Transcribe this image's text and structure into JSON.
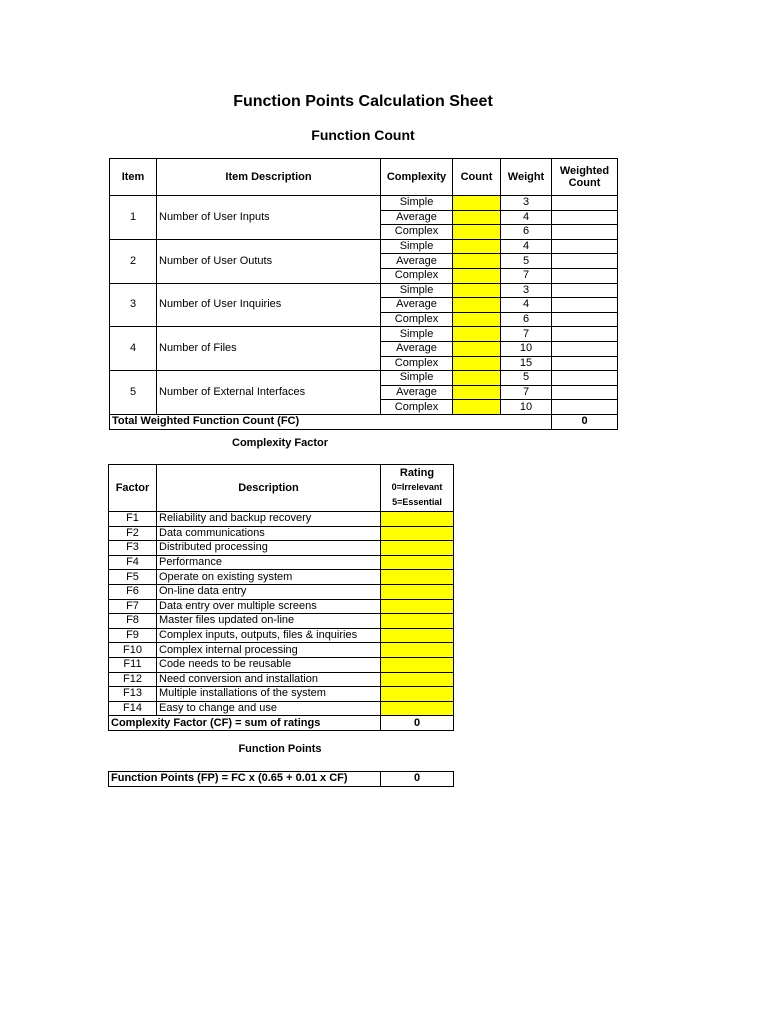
{
  "title": "Function Points Calculation Sheet",
  "function_count": {
    "heading": "Function Count",
    "headers": [
      "Item",
      "Item Description",
      "Complexity",
      "Count",
      "Weight",
      "Weighted Count"
    ],
    "items": [
      {
        "item": "1",
        "description": "Number of User Inputs",
        "levels": [
          {
            "complexity": "Simple",
            "weight": "3"
          },
          {
            "complexity": "Average",
            "weight": "4"
          },
          {
            "complexity": "Complex",
            "weight": "6"
          }
        ]
      },
      {
        "item": "2",
        "description": "Number of User Oututs",
        "levels": [
          {
            "complexity": "Simple",
            "weight": "4"
          },
          {
            "complexity": "Average",
            "weight": "5"
          },
          {
            "complexity": "Complex",
            "weight": "7"
          }
        ]
      },
      {
        "item": "3",
        "description": "Number of User Inquiries",
        "levels": [
          {
            "complexity": "Simple",
            "weight": "3"
          },
          {
            "complexity": "Average",
            "weight": "4"
          },
          {
            "complexity": "Complex",
            "weight": "6"
          }
        ]
      },
      {
        "item": "4",
        "description": "Number of Files",
        "levels": [
          {
            "complexity": "Simple",
            "weight": "7"
          },
          {
            "complexity": "Average",
            "weight": "10"
          },
          {
            "complexity": "Complex",
            "weight": "15"
          }
        ]
      },
      {
        "item": "5",
        "description": "Number of External Interfaces",
        "levels": [
          {
            "complexity": "Simple",
            "weight": "5"
          },
          {
            "complexity": "Average",
            "weight": "7"
          },
          {
            "complexity": "Complex",
            "weight": "10"
          }
        ]
      }
    ],
    "total_label": "Total Weighted Function Count (FC)",
    "total_value": "0"
  },
  "complexity_factor": {
    "heading": "Complexity Factor",
    "headers": {
      "factor": "Factor",
      "description": "Description",
      "rating": "Rating",
      "rating_sub1": "0=Irrelevant",
      "rating_sub2": "5=Essential"
    },
    "factors": [
      {
        "id": "F1",
        "description": "Reliability and backup recovery"
      },
      {
        "id": "F2",
        "description": "Data communications"
      },
      {
        "id": "F3",
        "description": "Distributed processing"
      },
      {
        "id": "F4",
        "description": "Performance"
      },
      {
        "id": "F5",
        "description": "Operate on existing system"
      },
      {
        "id": "F6",
        "description": "On-line data entry"
      },
      {
        "id": "F7",
        "description": "Data entry over multiple screens"
      },
      {
        "id": "F8",
        "description": "Master files updated on-line"
      },
      {
        "id": "F9",
        "description": "Complex inputs, outputs, files & inquiries"
      },
      {
        "id": "F10",
        "description": "Complex internal processing"
      },
      {
        "id": "F11",
        "description": "Code needs to be reusable"
      },
      {
        "id": "F12",
        "description": "Need conversion and installation"
      },
      {
        "id": "F13",
        "description": "Multiple installations of the system"
      },
      {
        "id": "F14",
        "description": "Easy to change and use"
      }
    ],
    "total_label": "Complexity Factor (CF) = sum of ratings",
    "total_value": "0"
  },
  "function_points": {
    "heading": "Function Points",
    "label": "Function Points (FP) = FC x (0.65 + 0.01 x CF)",
    "value": "0"
  },
  "colors": {
    "input_cell": "#ffff00"
  }
}
